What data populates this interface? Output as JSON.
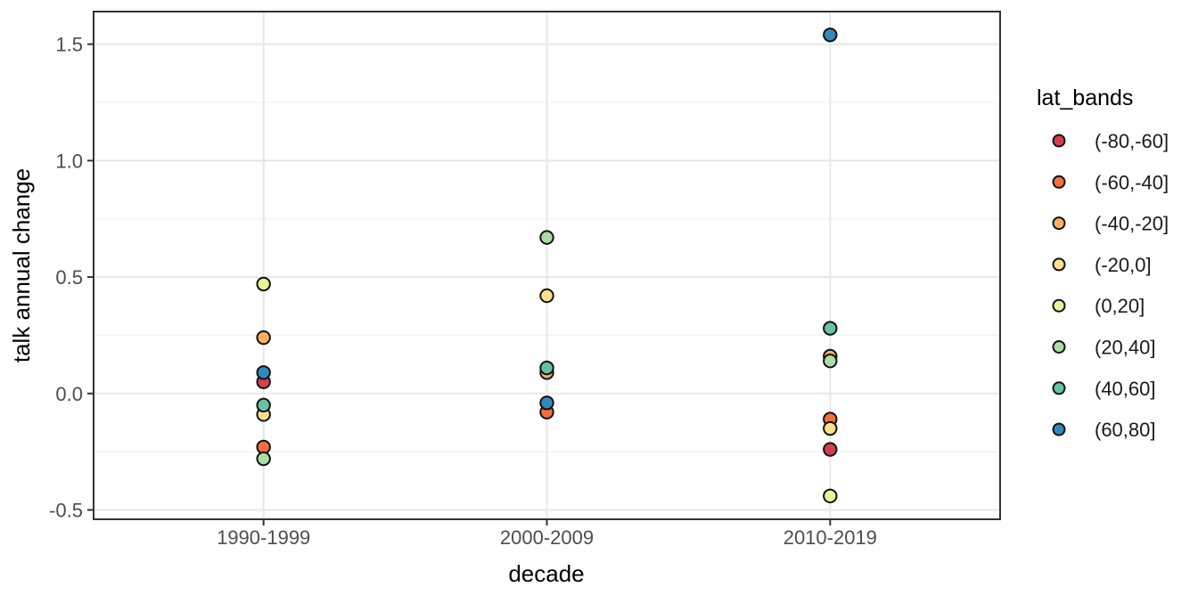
{
  "chart_data": {
    "type": "scatter",
    "title": "",
    "xlabel": "decade",
    "ylabel": "talk annual change",
    "categories": [
      "1990-1999",
      "2000-2009",
      "2010-2019"
    ],
    "ylim": [
      -0.54,
      1.64
    ],
    "yticks": [
      1.5,
      1.0,
      0.5,
      0.0,
      -0.5
    ],
    "ytick_labels": [
      "1.5",
      "1.0",
      "0.5",
      "0.0",
      "-0.5"
    ],
    "minor_yticks": [
      1.25,
      0.75,
      0.25,
      -0.25
    ],
    "grid": true,
    "legend": {
      "title": "lat_bands",
      "position": "right"
    },
    "series": [
      {
        "name": "(-80,-60]",
        "color": "#D53E4F",
        "values": [
          0.05,
          null,
          -0.24
        ]
      },
      {
        "name": "(-60,-40]",
        "color": "#F46D43",
        "values": [
          -0.23,
          -0.08,
          -0.11
        ]
      },
      {
        "name": "(-40,-20]",
        "color": "#FDAE61",
        "values": [
          0.24,
          0.09,
          0.16
        ]
      },
      {
        "name": "(-20,0]",
        "color": "#FEE08B",
        "values": [
          -0.09,
          0.42,
          -0.15
        ]
      },
      {
        "name": "(0,20]",
        "color": "#E6F598",
        "values": [
          0.47,
          null,
          -0.44
        ]
      },
      {
        "name": "(20,40]",
        "color": "#ABDDA4",
        "values": [
          -0.28,
          0.67,
          0.14
        ]
      },
      {
        "name": "(40,60]",
        "color": "#66C2A5",
        "values": [
          -0.05,
          0.11,
          0.28
        ]
      },
      {
        "name": "(60,80]",
        "color": "#3288BD",
        "values": [
          0.09,
          -0.04,
          1.54
        ]
      }
    ]
  },
  "colors": {
    "background": "#FFFFFF",
    "panel_background": "#FFFFFF",
    "grid_major": "#E7E7E7",
    "grid_minor": "#F0F0F0",
    "panel_border": "#333333",
    "tick_mark": "#333333",
    "axis_text": "#4D4D4D",
    "title_text": "#000000",
    "point_stroke": "#111111"
  }
}
